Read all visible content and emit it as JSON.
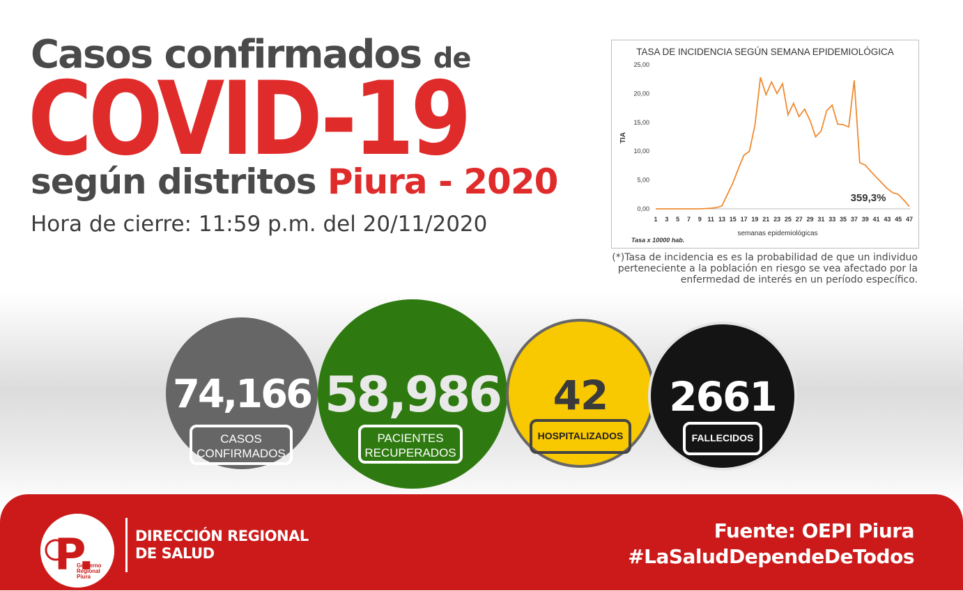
{
  "title": {
    "line1_main": "Casos confirmados",
    "line1_small": "de",
    "line2": "COVID-19",
    "line3_dark": "según distritos",
    "line3_red": "Piura - 2020",
    "closing_time": "Hora de cierre: 11:59 p.m. del 20/11/2020"
  },
  "chart_data": {
    "type": "line",
    "title": "TASA DE INCIDENCIA SEGÚN SEMANA EPIDEMIOLÓGICA",
    "xlabel": "semanas epidemiológicas",
    "ylabel": "TIA",
    "footnote_label": "Tasa x 10000 hab.",
    "annotation": "359,3%",
    "ylim": [
      0,
      25
    ],
    "y_ticks": [
      "0,00",
      "5,00",
      "10,00",
      "15,00",
      "20,00",
      "25,00"
    ],
    "x_ticks": [
      "1",
      "3",
      "5",
      "7",
      "9",
      "11",
      "13",
      "15",
      "17",
      "19",
      "21",
      "23",
      "25",
      "27",
      "29",
      "31",
      "33",
      "35",
      "37",
      "39",
      "41",
      "43",
      "45",
      "47"
    ],
    "x": [
      1,
      2,
      3,
      4,
      5,
      6,
      7,
      8,
      9,
      10,
      11,
      12,
      13,
      14,
      15,
      16,
      17,
      18,
      19,
      20,
      21,
      22,
      23,
      24,
      25,
      26,
      27,
      28,
      29,
      30,
      31,
      32,
      33,
      34,
      35,
      36,
      37,
      38,
      39,
      40,
      41,
      42,
      43,
      44,
      45,
      46,
      47
    ],
    "values": [
      0,
      0,
      0,
      0,
      0,
      0,
      0,
      0,
      0,
      0.05,
      0.1,
      0.2,
      0.5,
      2.5,
      4.5,
      7,
      9.3,
      10,
      14.5,
      22.8,
      19.8,
      22,
      20,
      21.7,
      16.3,
      18.3,
      16,
      17.3,
      15.3,
      12.5,
      13.5,
      17,
      18,
      14.7,
      14.6,
      14.2,
      22.3,
      8,
      7.6,
      6.5,
      5.5,
      4.5,
      3.5,
      2.8,
      2.5,
      1.5,
      0.4
    ],
    "line_color": "#f08a30"
  },
  "chart_note": "(*)Tasa de incidencia es es la probabilidad de que un individuo perteneciente a la población en riesgo se vea afectado por la enfermedad de interés en un período específico.",
  "stats": {
    "confirmed": {
      "value": "74,166",
      "label": "CASOS CONFIRMADOS",
      "color": "#666666"
    },
    "recovered": {
      "value": "58,986",
      "label": "PACIENTES RECUPERADOS",
      "color": "#2e7a10"
    },
    "hospitalized": {
      "value": "42",
      "label": "HOSPITALIZADOS",
      "color": "#f8c800"
    },
    "deceased": {
      "value": "2661",
      "label": "FALLECIDOS",
      "color": "#141414"
    }
  },
  "footer": {
    "logo_letter": "P.",
    "logo_text": "Gobierno Regional Piura",
    "org_line1": "DIRECCIÓN REGIONAL",
    "org_line2": "DE SALUD",
    "source": "Fuente: OEPI Piura",
    "hashtag": "#LaSaludDependeDeTodos"
  },
  "colors": {
    "accent_red": "#e02b2b",
    "footer_red": "#cc1a1a",
    "dark_gray": "#4a4a4a"
  }
}
